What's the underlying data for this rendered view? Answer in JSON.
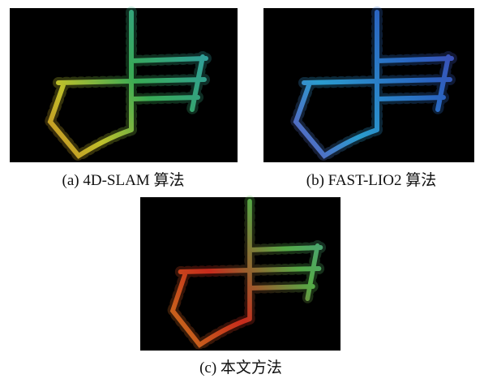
{
  "figures": [
    {
      "caption": "(a) 4D-SLAM 算法"
    },
    {
      "caption": "(b) FAST-LIO2 算法"
    },
    {
      "caption": "(c) 本文方法"
    }
  ]
}
